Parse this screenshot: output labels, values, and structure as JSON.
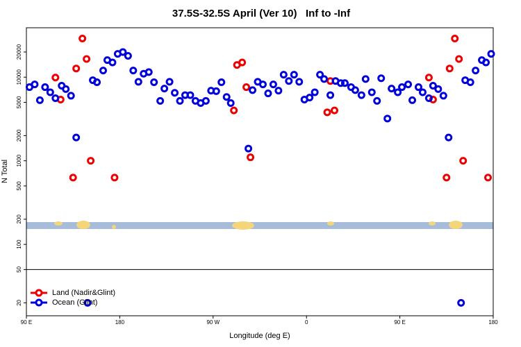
{
  "chart_data": {
    "type": "scatter",
    "title": "37.5S-32.5S April (Ver 10)   Inf to -Inf",
    "x_label": "Longitude (deg E)",
    "y_label": "N Total",
    "xlim": [
      90,
      540
    ],
    "ylim": [
      14,
      39000
    ],
    "log_y": true,
    "legend_position": "bottom-left",
    "hline": 50,
    "xticks": [
      {
        "value": 90,
        "label": "90 E"
      },
      180,
      {
        "value": 270,
        "label": "90 W"
      },
      {
        "value": 360,
        "label": "0"
      },
      {
        "value": 450,
        "label": "90 E"
      },
      {
        "value": 540,
        "label": "180"
      }
    ],
    "yticks": [
      20,
      50,
      100,
      200,
      500,
      1000,
      2000,
      5000,
      10000,
      20000
    ],
    "series": [
      {
        "name": "Land (Nadir&Glint)",
        "color": "#ee0000",
        "x": [
          118,
          123,
          135,
          138,
          144,
          148,
          152,
          175,
          293,
          298,
          290,
          302,
          306,
          380,
          387,
          383,
          478,
          482,
          495,
          498,
          503,
          507,
          511,
          535
        ],
        "values": [
          9900,
          5400,
          630,
          12700,
          29000,
          16500,
          1000,
          630,
          14000,
          15000,
          4000,
          7600,
          1100,
          3800,
          4000,
          9000,
          9900,
          5400,
          630,
          12700,
          29000,
          16500,
          1000,
          630
        ]
      },
      {
        "name": "Ocean (Glint)",
        "color": "#0000dd",
        "x": [
          93,
          98,
          103,
          108,
          113,
          118,
          124,
          128,
          133,
          138,
          149,
          154,
          158,
          164,
          168,
          173,
          178,
          183,
          188,
          193,
          198,
          203,
          208,
          213,
          219,
          223,
          228,
          233,
          238,
          243,
          248,
          253,
          258,
          263,
          268,
          273,
          278,
          283,
          287,
          304,
          308,
          313,
          318,
          323,
          328,
          333,
          338,
          343,
          348,
          353,
          358,
          363,
          368,
          373,
          377,
          383,
          388,
          393,
          397,
          403,
          407,
          413,
          417,
          423,
          428,
          432,
          438,
          442,
          448,
          452,
          458,
          462,
          468,
          472,
          478,
          482,
          487,
          492,
          497,
          509,
          513,
          518,
          523,
          529,
          533,
          538
        ],
        "values": [
          7600,
          8200,
          5300,
          7600,
          6600,
          5600,
          7900,
          7200,
          6000,
          1900,
          20,
          9200,
          8700,
          12000,
          16000,
          15000,
          19000,
          20000,
          18000,
          12000,
          8800,
          11000,
          11500,
          8700,
          5200,
          7300,
          8800,
          6500,
          5200,
          6100,
          6100,
          5200,
          4900,
          5200,
          6900,
          6800,
          8700,
          5800,
          4900,
          1400,
          7000,
          8800,
          8200,
          6400,
          8200,
          6900,
          10700,
          9000,
          10700,
          8800,
          5400,
          5700,
          6600,
          10700,
          9500,
          6100,
          9000,
          8500,
          8500,
          7600,
          7000,
          6100,
          9500,
          6600,
          5200,
          9700,
          3200,
          7300,
          6600,
          7600,
          8200,
          5300,
          7600,
          6600,
          5600,
          7900,
          7200,
          6000,
          1900,
          20,
          9200,
          8700,
          12000,
          16000,
          15000,
          19000
        ]
      }
    ]
  }
}
